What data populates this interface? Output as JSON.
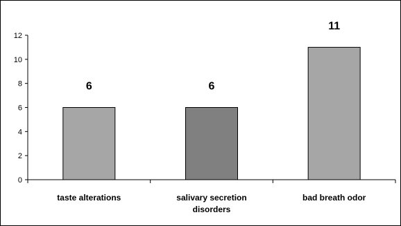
{
  "chart_data": {
    "type": "bar",
    "categories": [
      [
        "taste alterations"
      ],
      [
        "salivary secretion",
        "disorders"
      ],
      [
        "bad breath odor"
      ]
    ],
    "values": [
      6,
      6,
      11
    ],
    "data_labels": [
      "6",
      "6",
      "11"
    ],
    "ylim": [
      0,
      12
    ],
    "yticks": [
      0,
      2,
      4,
      6,
      8,
      10,
      12
    ],
    "grid": false,
    "title": "",
    "xlabel": "",
    "ylabel": ""
  },
  "colors": {
    "bars": [
      "#a6a6a6",
      "#808080",
      "#a6a6a6"
    ],
    "bar_stroke": "#000000",
    "axis": "#000000",
    "frame": "#000000"
  }
}
